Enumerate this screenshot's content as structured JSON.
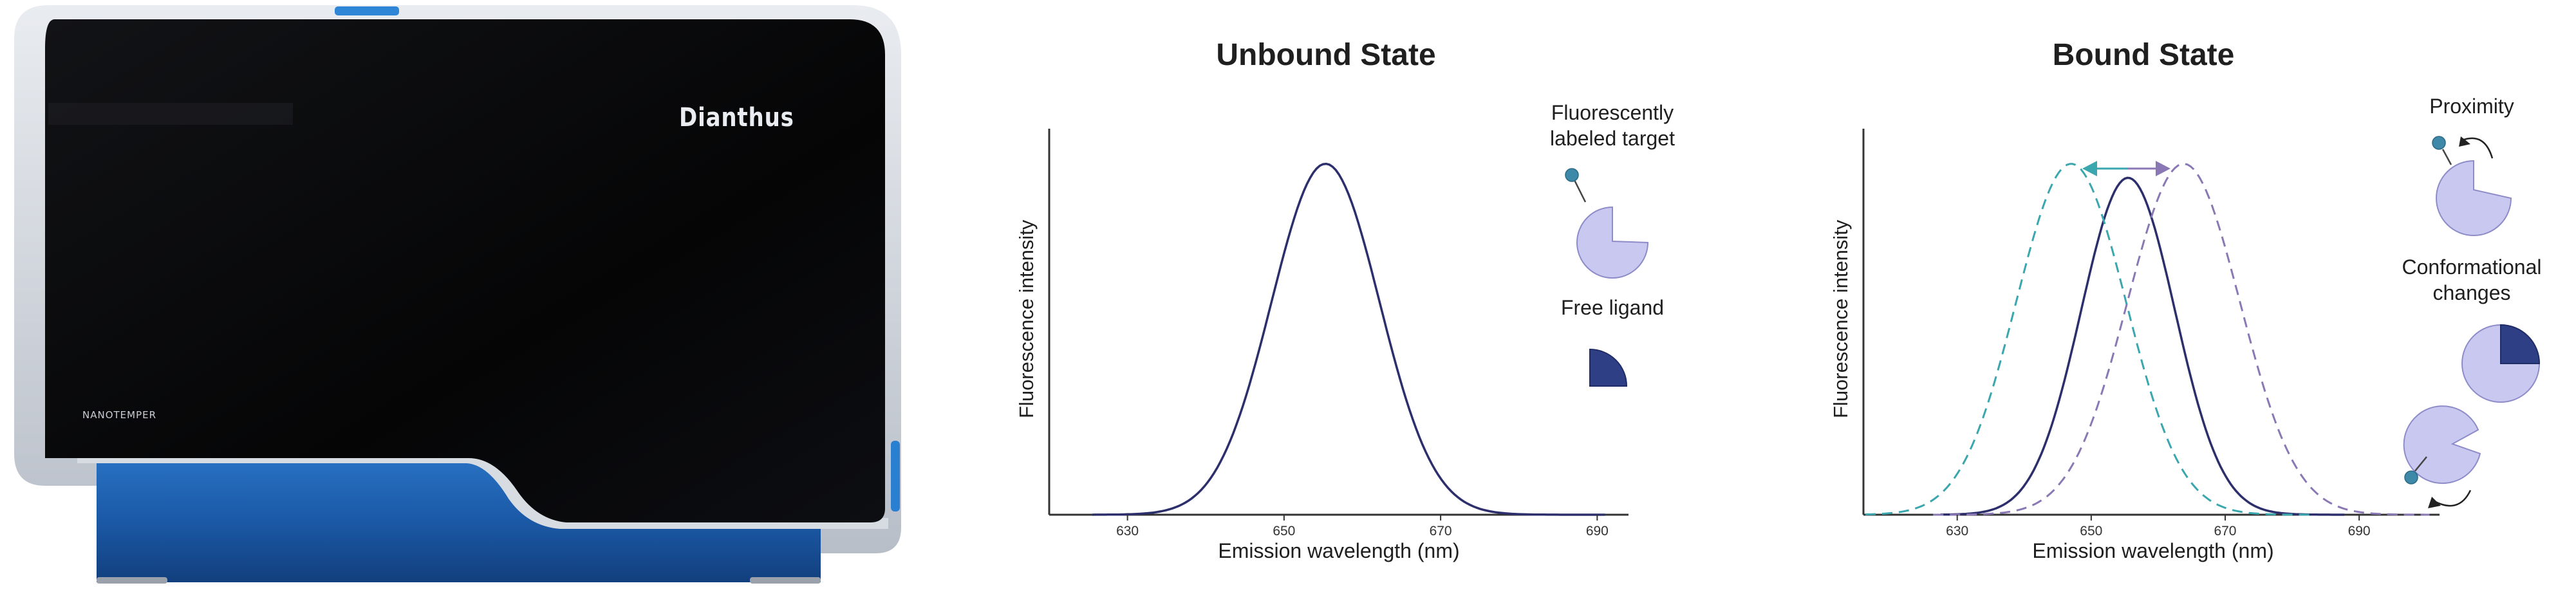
{
  "instrument": {
    "brand_label": "Dianthus",
    "maker_label": "NANOTEMPER",
    "colors": {
      "body": "#0a0a0c",
      "frame": "#cfd4dc",
      "base": "#1c5fae"
    }
  },
  "unbound": {
    "title": "Unbound State",
    "target_label": [
      "Fluorescently",
      "labeled target"
    ],
    "ligand_label": "Free ligand"
  },
  "bound": {
    "title": "Bound State",
    "proximity_label": "Proximity",
    "conformational_label": [
      "Conformational",
      "changes"
    ]
  },
  "colors": {
    "solid": "#2c2f6b",
    "cyan": "#3aa6ad",
    "purple": "#8a78b5",
    "protein": "#c9c8f0",
    "protein_stroke": "#8e8cc8",
    "dye": "#3e88a8",
    "ligand": "#2e3f86"
  },
  "chart_data": [
    {
      "type": "line",
      "title": "Unbound State",
      "xlabel": "Emission wavelength (nm)",
      "ylabel": "Fluorescence intensity",
      "x_ticks": [
        630,
        650,
        670,
        690
      ],
      "xlim": [
        620,
        694
      ],
      "ylim": [
        0,
        1.1
      ],
      "series": [
        {
          "style": "solid",
          "color": "#2c2f6b",
          "x_start": 625.5,
          "x_end": 691,
          "peak_x": 655.3,
          "peak_y": 1.0,
          "sigma": 6.9
        }
      ]
    },
    {
      "type": "line",
      "title": "Bound State",
      "xlabel": "Emission wavelength (nm)",
      "ylabel": "Fluorescence intensity",
      "x_ticks": [
        630,
        650,
        670,
        690
      ],
      "xlim": [
        616,
        702
      ],
      "ylim": [
        0,
        1.1
      ],
      "series": [
        {
          "style": "solid",
          "color": "#2c2f6b",
          "x_start": 627.5,
          "x_end": 687.8,
          "peak_x": 655.5,
          "peak_y": 0.96,
          "sigma": 7.0
        },
        {
          "style": "dashed",
          "color": "#3aa6ad",
          "x_start": 616.3,
          "x_end": 683.2,
          "peak_x": 647.0,
          "peak_y": 1.0,
          "sigma": 8.2
        },
        {
          "style": "dashed",
          "color": "#8a78b5",
          "x_start": 626.4,
          "x_end": 700.5,
          "peak_x": 663.8,
          "peak_y": 1.0,
          "sigma": 8.4
        }
      ]
    }
  ]
}
